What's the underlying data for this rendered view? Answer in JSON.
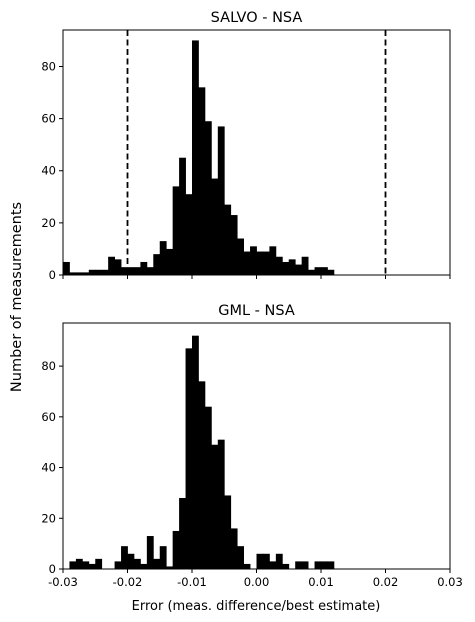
{
  "figure": {
    "shared_ylabel": "Number of measurements",
    "shared_xlabel": "Error (meas. difference/best estimate)"
  },
  "chart_data": [
    {
      "type": "bar",
      "title": "SALVO - NSA",
      "xlabel": "",
      "ylabel": "Number of measurements",
      "xlim": [
        -0.03,
        0.03
      ],
      "ylim": [
        0,
        94
      ],
      "bin_width": 0.001,
      "bin_start": -0.03,
      "xticks": [
        "",
        "",
        "",
        "",
        "",
        "",
        ""
      ],
      "yticks": [
        0,
        20,
        40,
        60,
        80
      ],
      "vlines": [
        -0.02,
        0.02
      ],
      "grid": false,
      "values": [
        5,
        1,
        1,
        1,
        2,
        2,
        2,
        7,
        6,
        3,
        3,
        3,
        5,
        3,
        8,
        13,
        10,
        34,
        45,
        31,
        90,
        72,
        59,
        37,
        57,
        27,
        23,
        14,
        9,
        11,
        9,
        9,
        11,
        7,
        5,
        6,
        4,
        7,
        2,
        3,
        3,
        2
      ]
    },
    {
      "type": "bar",
      "title": "GML - NSA",
      "xlabel": "Error (meas. difference/best estimate)",
      "ylabel": "Number of measurements",
      "xlim": [
        -0.03,
        0.03
      ],
      "ylim": [
        0,
        97
      ],
      "bin_width": 0.001,
      "bin_start": -0.03,
      "xticks": [
        "-0.03",
        "-0.02",
        "-0.01",
        "0.00",
        "0.01",
        "0.02",
        "0.03"
      ],
      "yticks": [
        0,
        20,
        40,
        60,
        80
      ],
      "vlines": [],
      "grid": false,
      "values": [
        0,
        3,
        4,
        3,
        2,
        4,
        0,
        0,
        3,
        9,
        6,
        4,
        2,
        13,
        4,
        9,
        1,
        15,
        28,
        87,
        92,
        74,
        64,
        49,
        51,
        29,
        16,
        9,
        2,
        0,
        6,
        6,
        3,
        6,
        2,
        0,
        3,
        3,
        0,
        3,
        3,
        3
      ]
    }
  ]
}
